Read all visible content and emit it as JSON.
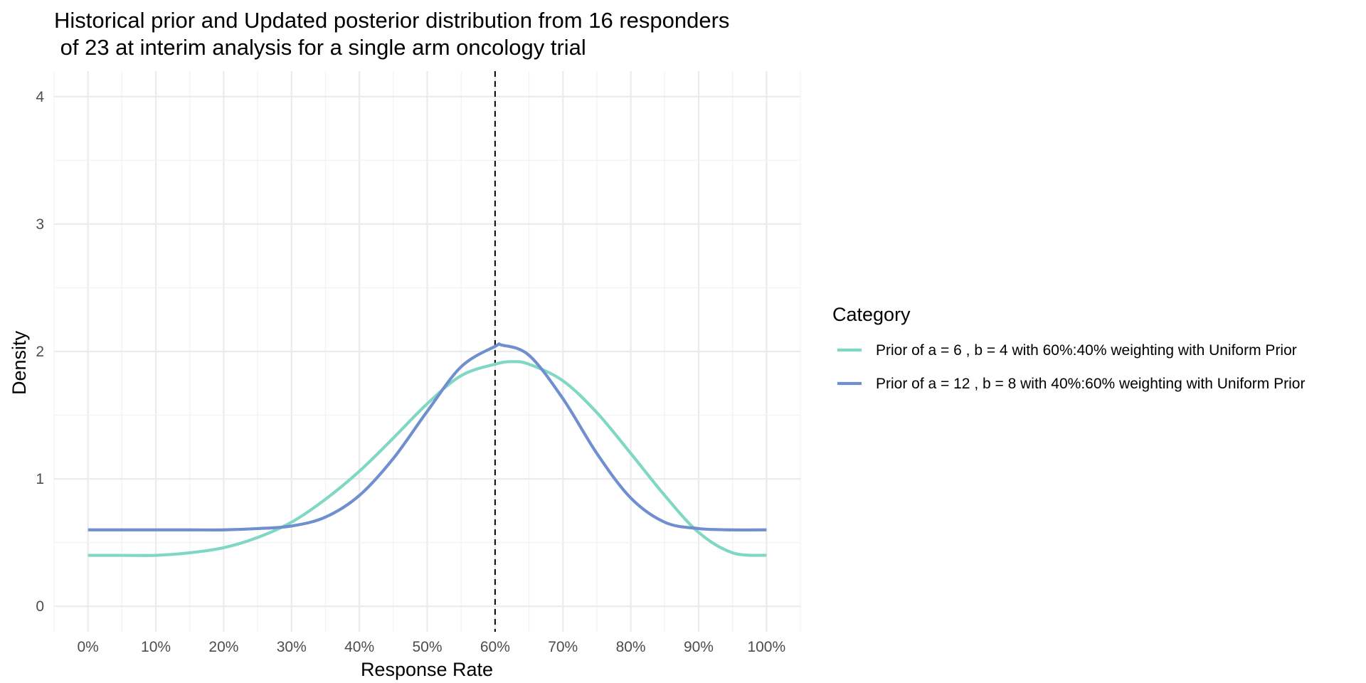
{
  "chart_data": {
    "type": "line",
    "title_lines": [
      "Historical prior and Updated posterior distribution from 16 responders",
      " of 23 at interim analysis for a single arm oncology trial"
    ],
    "xlabel": "Response Rate",
    "ylabel": "Density",
    "xlim": [
      -0.05,
      1.05
    ],
    "ylim": [
      -0.2,
      4.2
    ],
    "x_ticks": [
      0,
      0.1,
      0.2,
      0.3,
      0.4,
      0.5,
      0.6,
      0.7,
      0.8,
      0.9,
      1.0
    ],
    "x_tick_labels": [
      "0%",
      "10%",
      "20%",
      "30%",
      "40%",
      "50%",
      "60%",
      "70%",
      "80%",
      "90%",
      "100%"
    ],
    "y_ticks": [
      0,
      1,
      2,
      3,
      4
    ],
    "y_tick_labels": [
      "0",
      "1",
      "2",
      "3",
      "4"
    ],
    "grid": true,
    "reference_line": {
      "x": 0.6,
      "style": "dashed",
      "color": "#000000"
    },
    "legend": {
      "title": "Category",
      "position": "right"
    },
    "series": [
      {
        "name": "Prior of a = 6 , b = 4 with 60%:40% weighting with Uniform Prior",
        "color": "#7FD7C4",
        "x": [
          0,
          0.05,
          0.1,
          0.15,
          0.2,
          0.25,
          0.3,
          0.35,
          0.4,
          0.45,
          0.5,
          0.55,
          0.6,
          0.625,
          0.65,
          0.7,
          0.75,
          0.8,
          0.85,
          0.9,
          0.95,
          1.0
        ],
        "y": [
          0.4,
          0.4,
          0.4,
          0.42,
          0.46,
          0.54,
          0.66,
          0.84,
          1.06,
          1.32,
          1.59,
          1.81,
          1.9,
          1.92,
          1.9,
          1.77,
          1.52,
          1.2,
          0.87,
          0.58,
          0.42,
          0.4
        ]
      },
      {
        "name": "Prior of a = 12 , b = 8 with 40%:60% weighting with Uniform Prior",
        "color": "#6F8FCF",
        "x": [
          0,
          0.05,
          0.1,
          0.15,
          0.2,
          0.25,
          0.3,
          0.35,
          0.4,
          0.45,
          0.5,
          0.55,
          0.6,
          0.61,
          0.65,
          0.7,
          0.75,
          0.8,
          0.85,
          0.9,
          0.95,
          1.0
        ],
        "y": [
          0.6,
          0.6,
          0.6,
          0.6,
          0.6,
          0.61,
          0.63,
          0.7,
          0.87,
          1.16,
          1.53,
          1.88,
          2.04,
          2.05,
          1.97,
          1.63,
          1.2,
          0.85,
          0.66,
          0.61,
          0.6,
          0.6
        ]
      }
    ]
  }
}
